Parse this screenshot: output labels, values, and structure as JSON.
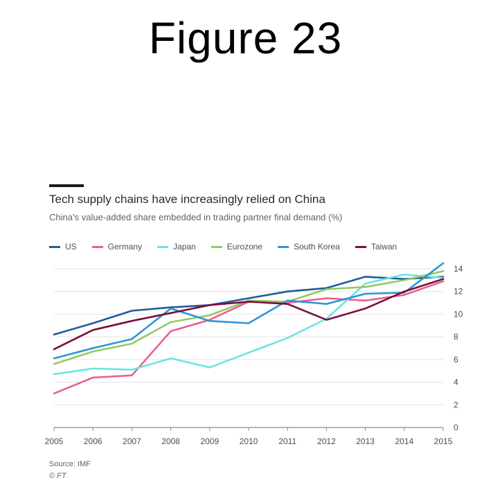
{
  "slide": {
    "title": "Figure 23"
  },
  "chart_data": {
    "type": "line",
    "title": "Tech supply chains have increasingly relied on China",
    "subtitle": "China’s value-added share embedded in trading partner final demand (%)",
    "source": "Source: IMF",
    "credit": "© FT",
    "x": [
      2005,
      2006,
      2007,
      2008,
      2009,
      2010,
      2011,
      2012,
      2013,
      2014,
      2015
    ],
    "xlabels": [
      "2005",
      "2006",
      "2007",
      "2008",
      "2009",
      "2010",
      "2011",
      "2012",
      "2013",
      "2014",
      "2015"
    ],
    "yticks": [
      0,
      2,
      4,
      6,
      8,
      10,
      12,
      14
    ],
    "ylim": [
      0,
      14
    ],
    "series": [
      {
        "name": "US",
        "color": "#1f5c99",
        "values": [
          8.2,
          9.2,
          10.3,
          10.6,
          10.8,
          11.4,
          12.0,
          12.3,
          13.3,
          13.1,
          13.3
        ]
      },
      {
        "name": "Germany",
        "color": "#eb5e8d",
        "values": [
          3.0,
          4.4,
          4.6,
          8.5,
          9.5,
          11.1,
          11.0,
          11.4,
          11.2,
          11.7,
          12.9
        ]
      },
      {
        "name": "Japan",
        "color": "#6de3e6",
        "values": [
          4.7,
          5.2,
          5.1,
          6.1,
          5.3,
          6.6,
          7.9,
          9.6,
          12.7,
          13.5,
          13.2
        ]
      },
      {
        "name": "Eurozone",
        "color": "#96c861",
        "values": [
          5.6,
          6.7,
          7.4,
          9.3,
          9.9,
          11.2,
          11.1,
          12.2,
          12.4,
          13.0,
          13.8
        ]
      },
      {
        "name": "South Korea",
        "color": "#2e95d4",
        "values": [
          6.1,
          7.0,
          7.8,
          10.5,
          9.4,
          9.2,
          11.2,
          10.9,
          11.8,
          11.9,
          14.5
        ]
      },
      {
        "name": "Taiwan",
        "color": "#7a0f3d",
        "values": [
          6.9,
          8.6,
          9.4,
          10.1,
          10.8,
          11.1,
          10.9,
          9.5,
          10.5,
          12.0,
          13.1
        ]
      }
    ]
  }
}
